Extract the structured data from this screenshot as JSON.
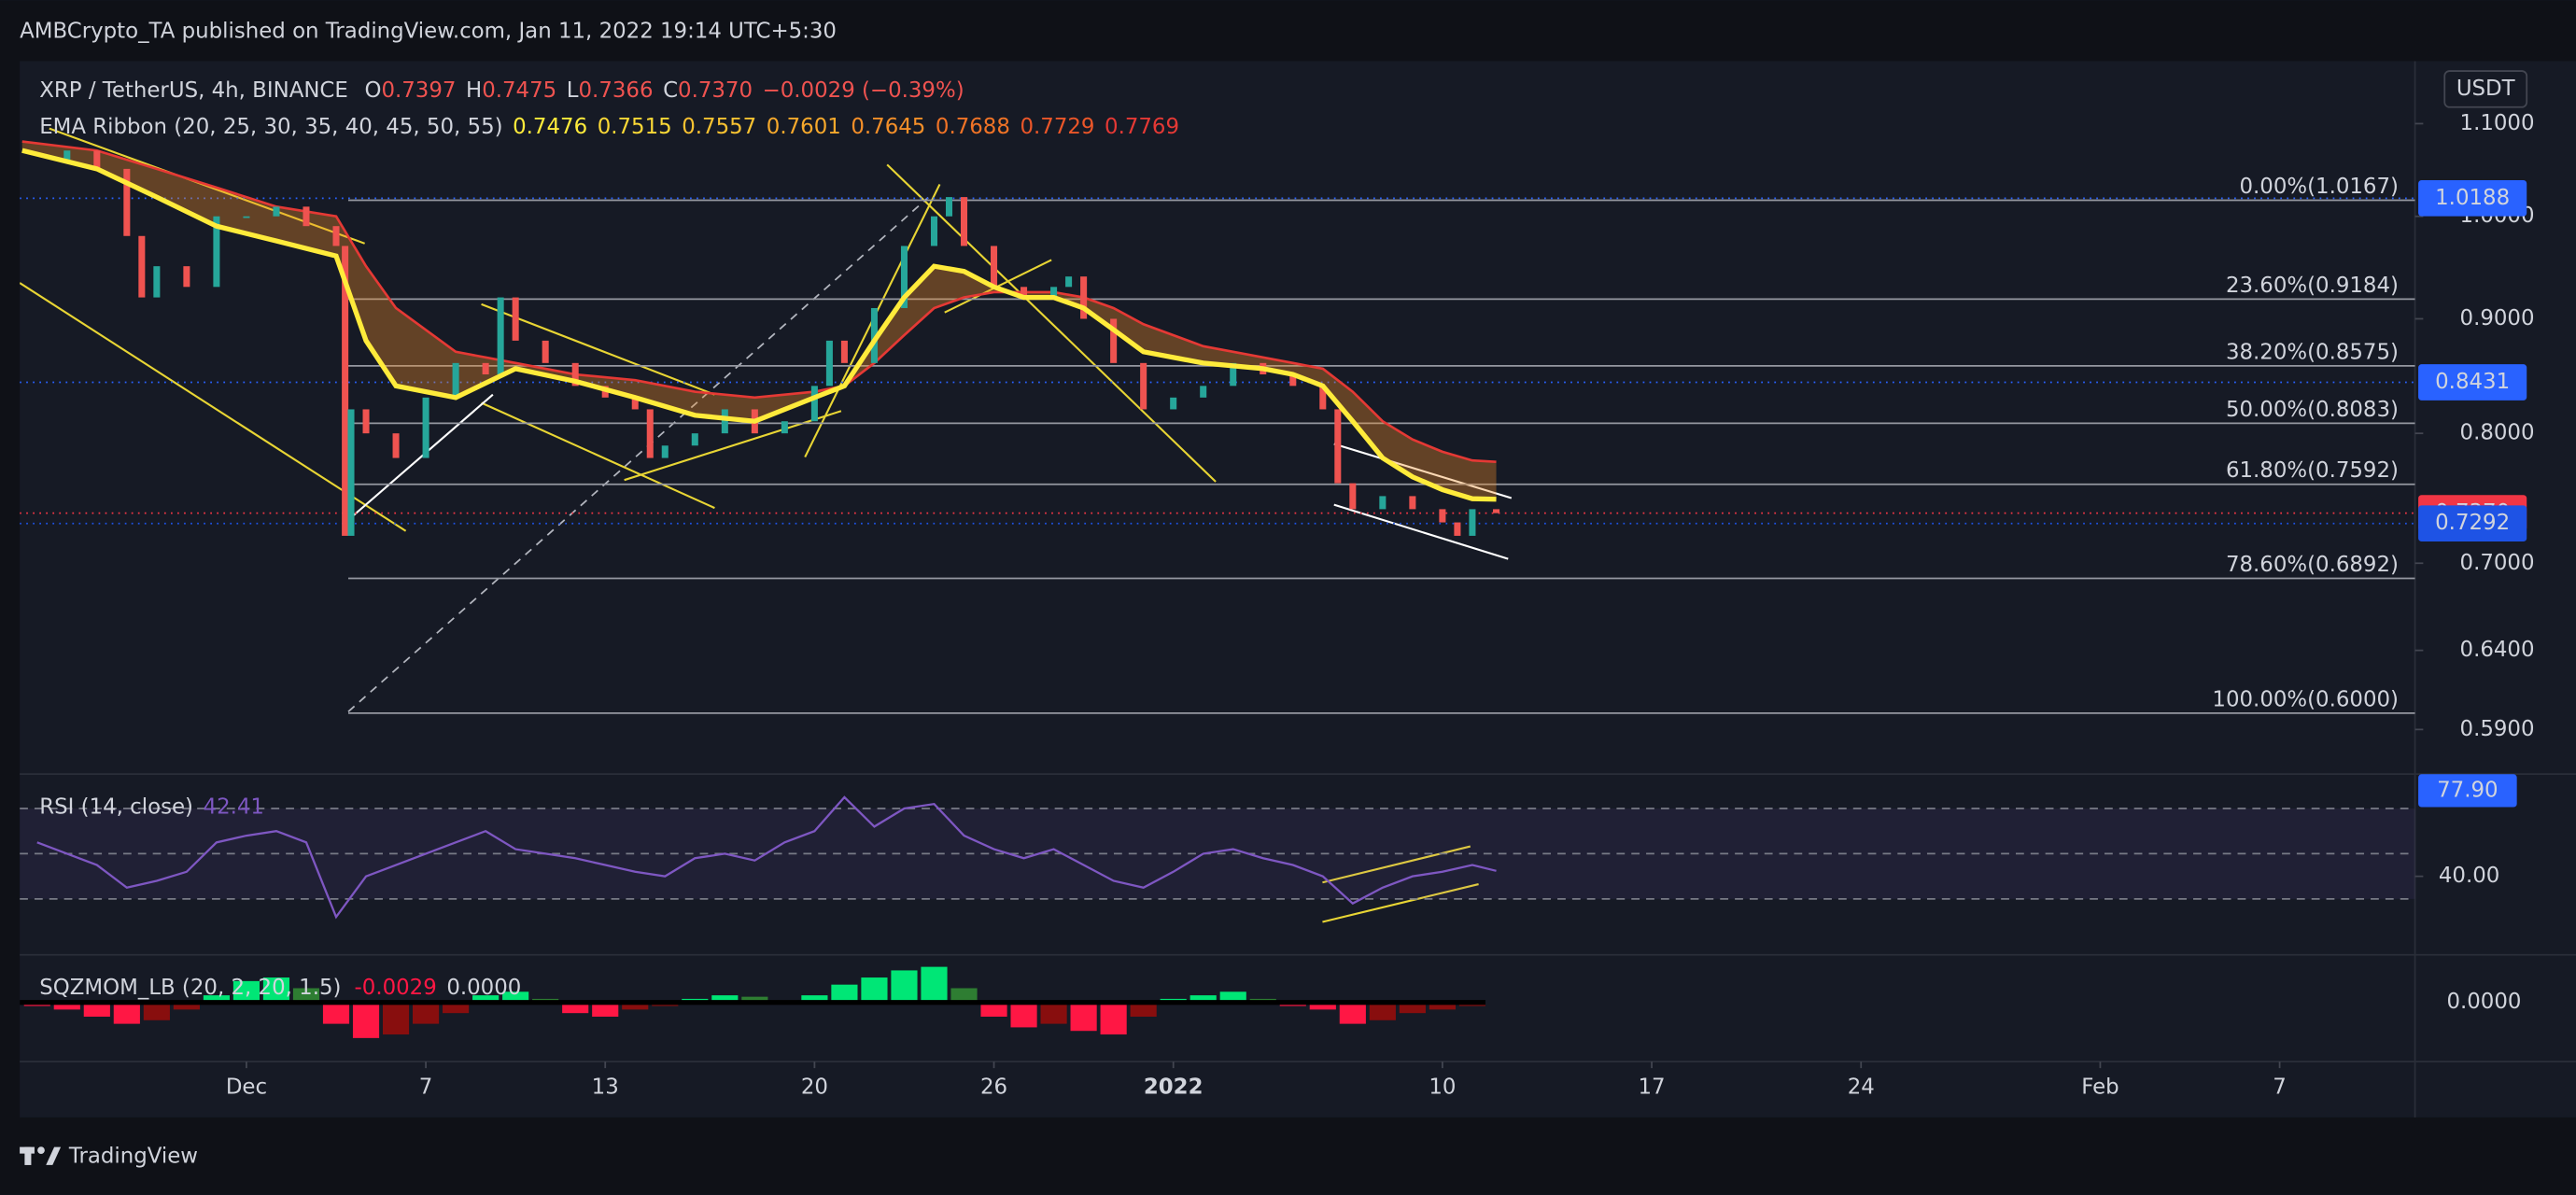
{
  "header": {
    "title": "AMBCrypto_TA published on TradingView.com, Jan 11, 2022 19:14 UTC+5:30"
  },
  "footer": {
    "brand": "TradingView"
  },
  "chart_data": {
    "type": "candlestick",
    "symbol": "XRP / TetherUS, 4h, BINANCE",
    "ohlc": [
      {
        "key": "O",
        "value": "0.7397"
      },
      {
        "key": "H",
        "value": "0.7475"
      },
      {
        "key": "L",
        "value": "0.7366"
      },
      {
        "key": "C",
        "value": "0.7370"
      }
    ],
    "change": "−0.0029 (−0.39%)",
    "currency": "USDT",
    "ema_label": "EMA Ribbon (20, 25, 30, 35, 40, 45, 50, 55)",
    "ema_values": [
      {
        "value": "0.7476",
        "color": "#ffeb3b"
      },
      {
        "value": "0.7515",
        "color": "#fbd836"
      },
      {
        "value": "0.7557",
        "color": "#f9c231"
      },
      {
        "value": "0.7601",
        "color": "#f7a92c"
      },
      {
        "value": "0.7645",
        "color": "#f48f29"
      },
      {
        "value": "0.7688",
        "color": "#f07326"
      },
      {
        "value": "0.7729",
        "color": "#ea5629"
      },
      {
        "value": "0.7769",
        "color": "#e53935"
      }
    ],
    "log_scale": true,
    "ylim": [
      0.5645,
      1.173
    ],
    "yticks": [
      {
        "value": 1.1,
        "label": "1.1000"
      },
      {
        "value": 1.0,
        "label": "1.0000"
      },
      {
        "value": 0.9,
        "label": "0.9000"
      },
      {
        "value": 0.8,
        "label": "0.8000"
      },
      {
        "value": 0.7,
        "label": "0.7000"
      },
      {
        "value": 0.64,
        "label": "0.6400"
      },
      {
        "value": 0.59,
        "label": "0.5900"
      }
    ],
    "price_badges": [
      {
        "value": 1.0188,
        "label": "1.0188",
        "color": "#2962ff"
      },
      {
        "value": 0.8431,
        "label": "0.8431",
        "color": "#2962ff"
      },
      {
        "value": 0.737,
        "label": "0.7370",
        "color": "#f23645"
      },
      {
        "value": 0.7292,
        "label": "0.7292",
        "color": "#1e53e5"
      }
    ],
    "fib_levels": [
      {
        "price": 1.0167,
        "label": "0.00%(1.0167)"
      },
      {
        "price": 0.9184,
        "label": "23.60%(0.9184)"
      },
      {
        "price": 0.8575,
        "label": "38.20%(0.8575)"
      },
      {
        "price": 0.8083,
        "label": "50.00%(0.8083)"
      },
      {
        "price": 0.7592,
        "label": "61.80%(0.7592)"
      },
      {
        "price": 0.6892,
        "label": "78.60%(0.6892)"
      },
      {
        "price": 0.6,
        "label": "100.00%(0.6000)"
      }
    ],
    "close": {
      "up_color": "#26a69a",
      "down_color": "#ef5350",
      "x": [
        -7.5,
        -6,
        -5,
        -4,
        -3.5,
        -3,
        -2,
        -1,
        0,
        1,
        2,
        3,
        3.3,
        3.5,
        4,
        5,
        6,
        7,
        8,
        8.5,
        9,
        10,
        11,
        12,
        13,
        13.5,
        14,
        15,
        16,
        17,
        18,
        19,
        19.5,
        20,
        21,
        22,
        23,
        23.5,
        24,
        25,
        26,
        27,
        27.5,
        28,
        29,
        30,
        31,
        32,
        33,
        34,
        35,
        36,
        36.5,
        37,
        38,
        39,
        40,
        40.5,
        41,
        41.8
      ],
      "values": [
        1.06,
        1.07,
        1.05,
        0.98,
        0.92,
        0.95,
        0.93,
        1.0,
        1.0,
        1.01,
        0.99,
        0.97,
        0.72,
        0.82,
        0.8,
        0.78,
        0.83,
        0.86,
        0.85,
        0.92,
        0.88,
        0.86,
        0.84,
        0.83,
        0.82,
        0.78,
        0.79,
        0.8,
        0.82,
        0.8,
        0.81,
        0.84,
        0.88,
        0.86,
        0.91,
        0.97,
        1.0,
        1.02,
        0.97,
        0.93,
        0.92,
        0.93,
        0.94,
        0.9,
        0.86,
        0.82,
        0.83,
        0.84,
        0.86,
        0.85,
        0.84,
        0.82,
        0.76,
        0.74,
        0.75,
        0.74,
        0.73,
        0.72,
        0.74,
        0.737
      ]
    },
    "ema_fast": {
      "color": "#ffeb3b",
      "x": [
        -7.5,
        -5,
        -3,
        -1,
        1,
        3,
        4,
        5,
        7,
        9,
        11,
        13,
        15,
        17,
        19,
        20,
        21,
        22,
        23,
        24,
        25,
        26,
        27,
        28,
        29,
        30,
        32,
        34,
        35,
        36,
        37,
        38,
        39,
        40,
        41,
        41.8
      ],
      "values": [
        1.07,
        1.05,
        1.02,
        0.99,
        0.975,
        0.96,
        0.88,
        0.84,
        0.83,
        0.855,
        0.844,
        0.83,
        0.815,
        0.81,
        0.83,
        0.84,
        0.88,
        0.92,
        0.95,
        0.945,
        0.93,
        0.92,
        0.92,
        0.91,
        0.89,
        0.87,
        0.86,
        0.855,
        0.85,
        0.84,
        0.81,
        0.78,
        0.765,
        0.755,
        0.748,
        0.7476
      ]
    },
    "ema_slow": {
      "color": "#e53935",
      "x": [
        -7.5,
        -5,
        -3,
        -1,
        1,
        3,
        4,
        5,
        7,
        9,
        11,
        13,
        15,
        17,
        19,
        20,
        21,
        22,
        23,
        24,
        25,
        26,
        27,
        28,
        29,
        30,
        32,
        34,
        35,
        36,
        37,
        38,
        39,
        40,
        41,
        41.8
      ],
      "values": [
        1.08,
        1.07,
        1.05,
        1.03,
        1.01,
        1.0,
        0.95,
        0.91,
        0.87,
        0.86,
        0.85,
        0.845,
        0.835,
        0.83,
        0.835,
        0.84,
        0.86,
        0.885,
        0.91,
        0.92,
        0.925,
        0.925,
        0.925,
        0.92,
        0.91,
        0.895,
        0.875,
        0.865,
        0.86,
        0.855,
        0.835,
        0.81,
        0.795,
        0.785,
        0.778,
        0.7769
      ]
    },
    "xticks": [
      {
        "value": 0,
        "label": "Dec"
      },
      {
        "value": 6,
        "label": "7"
      },
      {
        "value": 12,
        "label": "13"
      },
      {
        "value": 19,
        "label": "20"
      },
      {
        "value": 25,
        "label": "26"
      },
      {
        "value": 31,
        "label": "2022"
      },
      {
        "value": 40,
        "label": "10"
      },
      {
        "value": 47,
        "label": "17"
      },
      {
        "value": 54,
        "label": "24"
      },
      {
        "value": 62,
        "label": "Feb"
      },
      {
        "value": 68,
        "label": "7"
      }
    ]
  },
  "rsi": {
    "label": "RSI (14, close)",
    "current": "42.41",
    "color": "#7e57c2",
    "ylim": [
      6,
      84.5
    ],
    "bands": [
      70,
      50,
      30
    ],
    "yticks": [
      {
        "value": 40,
        "label": "40.00"
      }
    ],
    "badge": {
      "value": 77.9,
      "label": "77.90"
    },
    "x": [
      -7,
      -6,
      -5,
      -4,
      -3,
      -2,
      -1,
      0,
      1,
      2,
      3,
      4,
      5,
      6,
      7,
      8,
      9,
      10,
      11,
      12,
      13,
      14,
      15,
      16,
      17,
      18,
      19,
      20,
      21,
      22,
      23,
      24,
      25,
      26,
      27,
      28,
      29,
      30,
      31,
      32,
      33,
      34,
      35,
      36,
      37,
      38,
      39,
      40,
      41,
      41.8
    ],
    "values": [
      55,
      50,
      45,
      35,
      38,
      42,
      55,
      58,
      60,
      55,
      22,
      40,
      45,
      50,
      55,
      60,
      52,
      50,
      48,
      45,
      42,
      40,
      48,
      50,
      47,
      55,
      60,
      75,
      62,
      70,
      72,
      58,
      52,
      48,
      52,
      45,
      38,
      35,
      42,
      50,
      52,
      48,
      45,
      40,
      28,
      35,
      40,
      42,
      45,
      42.41
    ]
  },
  "squeeze": {
    "label": "SQZMOM_LB (20, 2, 20, 1.5)",
    "current": [
      "-0.0029",
      "0.0000"
    ],
    "ylim": [
      -0.06,
      0.06
    ],
    "yticks": [
      {
        "value": 0,
        "label": "0.0000"
      }
    ],
    "x": [
      -7,
      -6,
      -5,
      -4,
      -3,
      -2,
      -1,
      0,
      1,
      2,
      3,
      4,
      5,
      6,
      7,
      8,
      9,
      10,
      11,
      12,
      13,
      14,
      15,
      16,
      17,
      18,
      19,
      20,
      21,
      22,
      23,
      24,
      25,
      26,
      27,
      28,
      29,
      30,
      31,
      32,
      33,
      34,
      35,
      36,
      37,
      38,
      39,
      40,
      41
    ],
    "values": [
      -0.005,
      -0.01,
      -0.02,
      -0.03,
      -0.025,
      -0.01,
      0.01,
      0.03,
      0.035,
      0.02,
      -0.03,
      -0.05,
      -0.045,
      -0.03,
      -0.015,
      0.01,
      0.015,
      0.005,
      -0.015,
      -0.02,
      -0.01,
      -0.005,
      0.005,
      0.01,
      0.008,
      0.003,
      0.01,
      0.025,
      0.035,
      0.045,
      0.05,
      0.02,
      -0.02,
      -0.035,
      -0.03,
      -0.04,
      -0.045,
      -0.02,
      0.005,
      0.01,
      0.015,
      0.005,
      -0.005,
      -0.01,
      -0.03,
      -0.025,
      -0.015,
      -0.01,
      -0.005
    ]
  }
}
